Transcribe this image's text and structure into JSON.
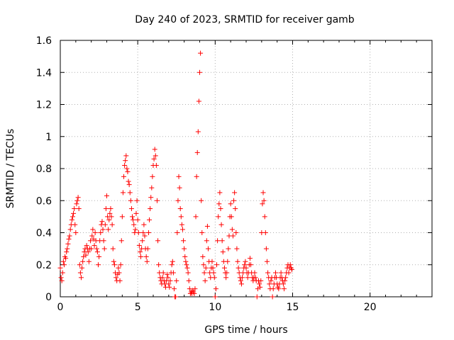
{
  "chart_data": {
    "type": "scatter",
    "title": "Day 240 of 2023, SRMTID for receiver gamb",
    "xlabel": "GPS time / hours",
    "ylabel": "SRMTID / TECUs",
    "xlim": [
      0,
      24
    ],
    "ylim": [
      0,
      1.6
    ],
    "xticks": [
      0,
      5,
      10,
      15,
      20
    ],
    "xtick_labels": [
      "0",
      "5",
      "10",
      "15",
      "20"
    ],
    "yticks": [
      0,
      0.2,
      0.4,
      0.6,
      0.8,
      1,
      1.2,
      1.4,
      1.6
    ],
    "ytick_labels": [
      "0",
      "0.2",
      "0.4",
      "0.6",
      "0.8",
      "1",
      "1.2",
      "1.4",
      "1.6"
    ],
    "grid": true,
    "marker": "+",
    "series_color": "#ff0000",
    "series": [
      {
        "name": "SRMTID",
        "points": [
          [
            0.0,
            0.18
          ],
          [
            0.05,
            0.12
          ],
          [
            0.1,
            0.1
          ],
          [
            0.15,
            0.15
          ],
          [
            0.2,
            0.22
          ],
          [
            0.25,
            0.2
          ],
          [
            0.3,
            0.25
          ],
          [
            0.35,
            0.24
          ],
          [
            0.4,
            0.28
          ],
          [
            0.45,
            0.3
          ],
          [
            0.5,
            0.33
          ],
          [
            0.55,
            0.36
          ],
          [
            0.6,
            0.38
          ],
          [
            0.65,
            0.42
          ],
          [
            0.7,
            0.45
          ],
          [
            0.75,
            0.48
          ],
          [
            0.8,
            0.5
          ],
          [
            0.85,
            0.52
          ],
          [
            0.9,
            0.55
          ],
          [
            0.95,
            0.45
          ],
          [
            1.0,
            0.4
          ],
          [
            1.05,
            0.58
          ],
          [
            1.1,
            0.6
          ],
          [
            1.15,
            0.62
          ],
          [
            1.2,
            0.55
          ],
          [
            1.25,
            0.2
          ],
          [
            1.3,
            0.15
          ],
          [
            1.35,
            0.12
          ],
          [
            1.4,
            0.18
          ],
          [
            1.45,
            0.22
          ],
          [
            1.5,
            0.25
          ],
          [
            1.55,
            0.28
          ],
          [
            1.6,
            0.3
          ],
          [
            1.65,
            0.26
          ],
          [
            1.7,
            0.32
          ],
          [
            1.75,
            0.3
          ],
          [
            1.8,
            0.28
          ],
          [
            1.85,
            0.22
          ],
          [
            1.9,
            0.3
          ],
          [
            1.95,
            0.35
          ],
          [
            2.0,
            0.3
          ],
          [
            2.05,
            0.38
          ],
          [
            2.1,
            0.42
          ],
          [
            2.15,
            0.36
          ],
          [
            2.2,
            0.32
          ],
          [
            2.25,
            0.4
          ],
          [
            2.3,
            0.35
          ],
          [
            2.35,
            0.3
          ],
          [
            2.4,
            0.28
          ],
          [
            2.45,
            0.2
          ],
          [
            2.5,
            0.25
          ],
          [
            2.55,
            0.35
          ],
          [
            2.6,
            0.4
          ],
          [
            2.65,
            0.45
          ],
          [
            2.7,
            0.47
          ],
          [
            2.75,
            0.42
          ],
          [
            2.8,
            0.35
          ],
          [
            2.85,
            0.3
          ],
          [
            2.9,
            0.45
          ],
          [
            2.95,
            0.55
          ],
          [
            3.0,
            0.63
          ],
          [
            3.05,
            0.5
          ],
          [
            3.1,
            0.42
          ],
          [
            3.15,
            0.48
          ],
          [
            3.2,
            0.52
          ],
          [
            3.25,
            0.55
          ],
          [
            3.3,
            0.5
          ],
          [
            3.35,
            0.45
          ],
          [
            3.4,
            0.3
          ],
          [
            3.45,
            0.22
          ],
          [
            3.5,
            0.2
          ],
          [
            3.55,
            0.15
          ],
          [
            3.6,
            0.12
          ],
          [
            3.65,
            0.1
          ],
          [
            3.7,
            0.14
          ],
          [
            3.75,
            0.18
          ],
          [
            3.8,
            0.15
          ],
          [
            3.85,
            0.1
          ],
          [
            3.9,
            0.2
          ],
          [
            3.95,
            0.35
          ],
          [
            4.0,
            0.5
          ],
          [
            4.05,
            0.65
          ],
          [
            4.1,
            0.75
          ],
          [
            4.15,
            0.82
          ],
          [
            4.2,
            0.85
          ],
          [
            4.25,
            0.88
          ],
          [
            4.3,
            0.8
          ],
          [
            4.35,
            0.78
          ],
          [
            4.4,
            0.72
          ],
          [
            4.45,
            0.7
          ],
          [
            4.5,
            0.65
          ],
          [
            4.55,
            0.6
          ],
          [
            4.6,
            0.55
          ],
          [
            4.65,
            0.5
          ],
          [
            4.7,
            0.48
          ],
          [
            4.75,
            0.45
          ],
          [
            4.8,
            0.4
          ],
          [
            4.85,
            0.42
          ],
          [
            4.9,
            0.52
          ],
          [
            4.95,
            0.6
          ],
          [
            5.0,
            0.48
          ],
          [
            5.05,
            0.4
          ],
          [
            5.1,
            0.32
          ],
          [
            5.15,
            0.28
          ],
          [
            5.2,
            0.25
          ],
          [
            5.25,
            0.3
          ],
          [
            5.3,
            0.35
          ],
          [
            5.35,
            0.4
          ],
          [
            5.4,
            0.45
          ],
          [
            5.45,
            0.38
          ],
          [
            5.5,
            0.3
          ],
          [
            5.55,
            0.25
          ],
          [
            5.6,
            0.22
          ],
          [
            5.65,
            0.3
          ],
          [
            5.7,
            0.4
          ],
          [
            5.75,
            0.48
          ],
          [
            5.8,
            0.55
          ],
          [
            5.85,
            0.62
          ],
          [
            5.9,
            0.68
          ],
          [
            5.95,
            0.75
          ],
          [
            6.0,
            0.82
          ],
          [
            6.05,
            0.86
          ],
          [
            6.1,
            0.92
          ],
          [
            6.15,
            0.88
          ],
          [
            6.2,
            0.82
          ],
          [
            6.25,
            0.6
          ],
          [
            6.3,
            0.35
          ],
          [
            6.35,
            0.2
          ],
          [
            6.4,
            0.15
          ],
          [
            6.45,
            0.12
          ],
          [
            6.5,
            0.1
          ],
          [
            6.55,
            0.08
          ],
          [
            6.6,
            0.12
          ],
          [
            6.65,
            0.15
          ],
          [
            6.7,
            0.1
          ],
          [
            6.75,
            0.08
          ],
          [
            6.8,
            0.06
          ],
          [
            6.85,
            0.1
          ],
          [
            6.9,
            0.14
          ],
          [
            6.95,
            0.12
          ],
          [
            7.0,
            0.08
          ],
          [
            7.05,
            0.06
          ],
          [
            7.1,
            0.1
          ],
          [
            7.15,
            0.15
          ],
          [
            7.2,
            0.2
          ],
          [
            7.25,
            0.22
          ],
          [
            7.3,
            0.15
          ],
          [
            7.35,
            0.05
          ],
          [
            7.4,
            0.0
          ],
          [
            7.45,
            0.0
          ],
          [
            7.5,
            0.1
          ],
          [
            7.55,
            0.4
          ],
          [
            7.6,
            0.6
          ],
          [
            7.65,
            0.75
          ],
          [
            7.7,
            0.68
          ],
          [
            7.75,
            0.55
          ],
          [
            7.8,
            0.5
          ],
          [
            7.85,
            0.45
          ],
          [
            7.9,
            0.42
          ],
          [
            7.95,
            0.35
          ],
          [
            8.0,
            0.3
          ],
          [
            8.05,
            0.25
          ],
          [
            8.1,
            0.22
          ],
          [
            8.15,
            0.2
          ],
          [
            8.2,
            0.18
          ],
          [
            8.25,
            0.15
          ],
          [
            8.3,
            0.1
          ],
          [
            8.35,
            0.05
          ],
          [
            8.4,
            0.02
          ],
          [
            8.45,
            0.03
          ],
          [
            8.5,
            0.02
          ],
          [
            8.55,
            0.04
          ],
          [
            8.6,
            0.03
          ],
          [
            8.65,
            0.02
          ],
          [
            8.7,
            0.05
          ],
          [
            8.75,
            0.5
          ],
          [
            8.8,
            0.75
          ],
          [
            8.85,
            0.9
          ],
          [
            8.9,
            1.03
          ],
          [
            8.95,
            1.22
          ],
          [
            9.0,
            1.4
          ],
          [
            9.05,
            1.52
          ],
          [
            9.1,
            0.6
          ],
          [
            9.15,
            0.4
          ],
          [
            9.2,
            0.25
          ],
          [
            9.25,
            0.2
          ],
          [
            9.3,
            0.15
          ],
          [
            9.35,
            0.1
          ],
          [
            9.4,
            0.18
          ],
          [
            9.45,
            0.35
          ],
          [
            9.5,
            0.44
          ],
          [
            9.55,
            0.3
          ],
          [
            9.6,
            0.22
          ],
          [
            9.65,
            0.15
          ],
          [
            9.7,
            0.12
          ],
          [
            9.75,
            0.18
          ],
          [
            9.8,
            0.22
          ],
          [
            9.85,
            0.18
          ],
          [
            9.9,
            0.15
          ],
          [
            9.95,
            0.12
          ],
          [
            10.0,
            0.0
          ],
          [
            10.05,
            0.05
          ],
          [
            10.1,
            0.2
          ],
          [
            10.15,
            0.35
          ],
          [
            10.2,
            0.5
          ],
          [
            10.25,
            0.58
          ],
          [
            10.3,
            0.65
          ],
          [
            10.35,
            0.55
          ],
          [
            10.4,
            0.45
          ],
          [
            10.45,
            0.35
          ],
          [
            10.5,
            0.28
          ],
          [
            10.55,
            0.22
          ],
          [
            10.6,
            0.18
          ],
          [
            10.65,
            0.15
          ],
          [
            10.7,
            0.12
          ],
          [
            10.75,
            0.15
          ],
          [
            10.8,
            0.22
          ],
          [
            10.85,
            0.3
          ],
          [
            10.9,
            0.38
          ],
          [
            10.95,
            0.5
          ],
          [
            11.0,
            0.58
          ],
          [
            11.05,
            0.5
          ],
          [
            11.1,
            0.42
          ],
          [
            11.15,
            0.38
          ],
          [
            11.2,
            0.6
          ],
          [
            11.25,
            0.65
          ],
          [
            11.3,
            0.55
          ],
          [
            11.35,
            0.4
          ],
          [
            11.4,
            0.3
          ],
          [
            11.45,
            0.22
          ],
          [
            11.5,
            0.18
          ],
          [
            11.55,
            0.15
          ],
          [
            11.6,
            0.12
          ],
          [
            11.65,
            0.1
          ],
          [
            11.7,
            0.08
          ],
          [
            11.75,
            0.12
          ],
          [
            11.8,
            0.15
          ],
          [
            11.85,
            0.18
          ],
          [
            11.9,
            0.2
          ],
          [
            11.95,
            0.22
          ],
          [
            12.0,
            0.18
          ],
          [
            12.05,
            0.15
          ],
          [
            12.1,
            0.12
          ],
          [
            12.15,
            0.15
          ],
          [
            12.2,
            0.2
          ],
          [
            12.25,
            0.24
          ],
          [
            12.3,
            0.2
          ],
          [
            12.35,
            0.15
          ],
          [
            12.4,
            0.12
          ],
          [
            12.45,
            0.1
          ],
          [
            12.5,
            0.12
          ],
          [
            12.55,
            0.15
          ],
          [
            12.6,
            0.12
          ],
          [
            12.65,
            0.1
          ],
          [
            12.7,
            0.0
          ],
          [
            12.75,
            0.05
          ],
          [
            12.8,
            0.1
          ],
          [
            12.85,
            0.08
          ],
          [
            12.9,
            0.06
          ],
          [
            12.95,
            0.1
          ],
          [
            13.0,
            0.4
          ],
          [
            13.05,
            0.58
          ],
          [
            13.1,
            0.65
          ],
          [
            13.15,
            0.6
          ],
          [
            13.2,
            0.5
          ],
          [
            13.25,
            0.4
          ],
          [
            13.3,
            0.3
          ],
          [
            13.35,
            0.22
          ],
          [
            13.4,
            0.15
          ],
          [
            13.45,
            0.12
          ],
          [
            13.5,
            0.08
          ],
          [
            13.55,
            0.05
          ],
          [
            13.6,
            0.1
          ],
          [
            13.65,
            0.12
          ],
          [
            13.7,
            0.0
          ],
          [
            13.75,
            0.05
          ],
          [
            13.8,
            0.08
          ],
          [
            13.85,
            0.12
          ],
          [
            13.9,
            0.15
          ],
          [
            13.95,
            0.12
          ],
          [
            14.0,
            0.08
          ],
          [
            14.05,
            0.06
          ],
          [
            14.1,
            0.05
          ],
          [
            14.15,
            0.08
          ],
          [
            14.2,
            0.12
          ],
          [
            14.25,
            0.15
          ],
          [
            14.3,
            0.12
          ],
          [
            14.35,
            0.1
          ],
          [
            14.4,
            0.08
          ],
          [
            14.45,
            0.05
          ],
          [
            14.5,
            0.1
          ],
          [
            14.55,
            0.12
          ],
          [
            14.6,
            0.15
          ],
          [
            14.65,
            0.18
          ],
          [
            14.7,
            0.2
          ],
          [
            14.75,
            0.15
          ],
          [
            14.8,
            0.18
          ],
          [
            14.85,
            0.2
          ],
          [
            14.9,
            0.18
          ],
          [
            14.95,
            0.17
          ]
        ]
      }
    ]
  }
}
